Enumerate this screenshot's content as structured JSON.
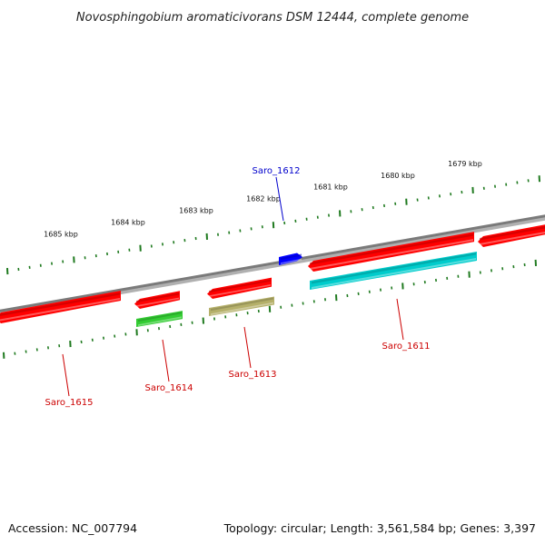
{
  "title": "Novosphingobium aromaticivorans DSM 12444, complete genome",
  "footer": {
    "accession": "Accession: NC_007794",
    "summary": "Topology: circular; Length: 3,561,584 bp; Genes: 3,397"
  },
  "colors": {
    "backbone": "#8a8a8a",
    "tick": "#1f7a1f",
    "label_red": "#cc0000",
    "label_blue": "#0000cc"
  },
  "scale_labels": [
    "1685 kbp",
    "1684 kbp",
    "1683 kbp",
    "1682 kbp",
    "1681 kbp",
    "1680 kbp",
    "1679 kbp"
  ],
  "genes": [
    {
      "label": "Saro_1615",
      "color": "#ff0000",
      "strand": "reverse"
    },
    {
      "label": "Saro_1614",
      "color": "#ff0000",
      "strand": "reverse"
    },
    {
      "label": "",
      "color": "#33cc33",
      "strand": "none"
    },
    {
      "label": "Saro_1613",
      "color": "#ff0000",
      "strand": "reverse"
    },
    {
      "label": "",
      "color": "#b5b06a",
      "strand": "none"
    },
    {
      "label": "Saro_1612",
      "color": "#0000ff",
      "strand": "forward"
    },
    {
      "label": "Saro_1611",
      "color": "#ff0000",
      "strand": "reverse"
    },
    {
      "label": "",
      "color": "#00cccc",
      "strand": "none"
    },
    {
      "label": "",
      "color": "#ff0000",
      "strand": "reverse"
    }
  ],
  "callouts": [
    {
      "label": "Saro_1615",
      "color": "#cc0000"
    },
    {
      "label": "Saro_1614",
      "color": "#cc0000"
    },
    {
      "label": "Saro_1613",
      "color": "#cc0000"
    },
    {
      "label": "Saro_1612",
      "color": "#0000cc"
    },
    {
      "label": "Saro_1611",
      "color": "#cc0000"
    }
  ]
}
